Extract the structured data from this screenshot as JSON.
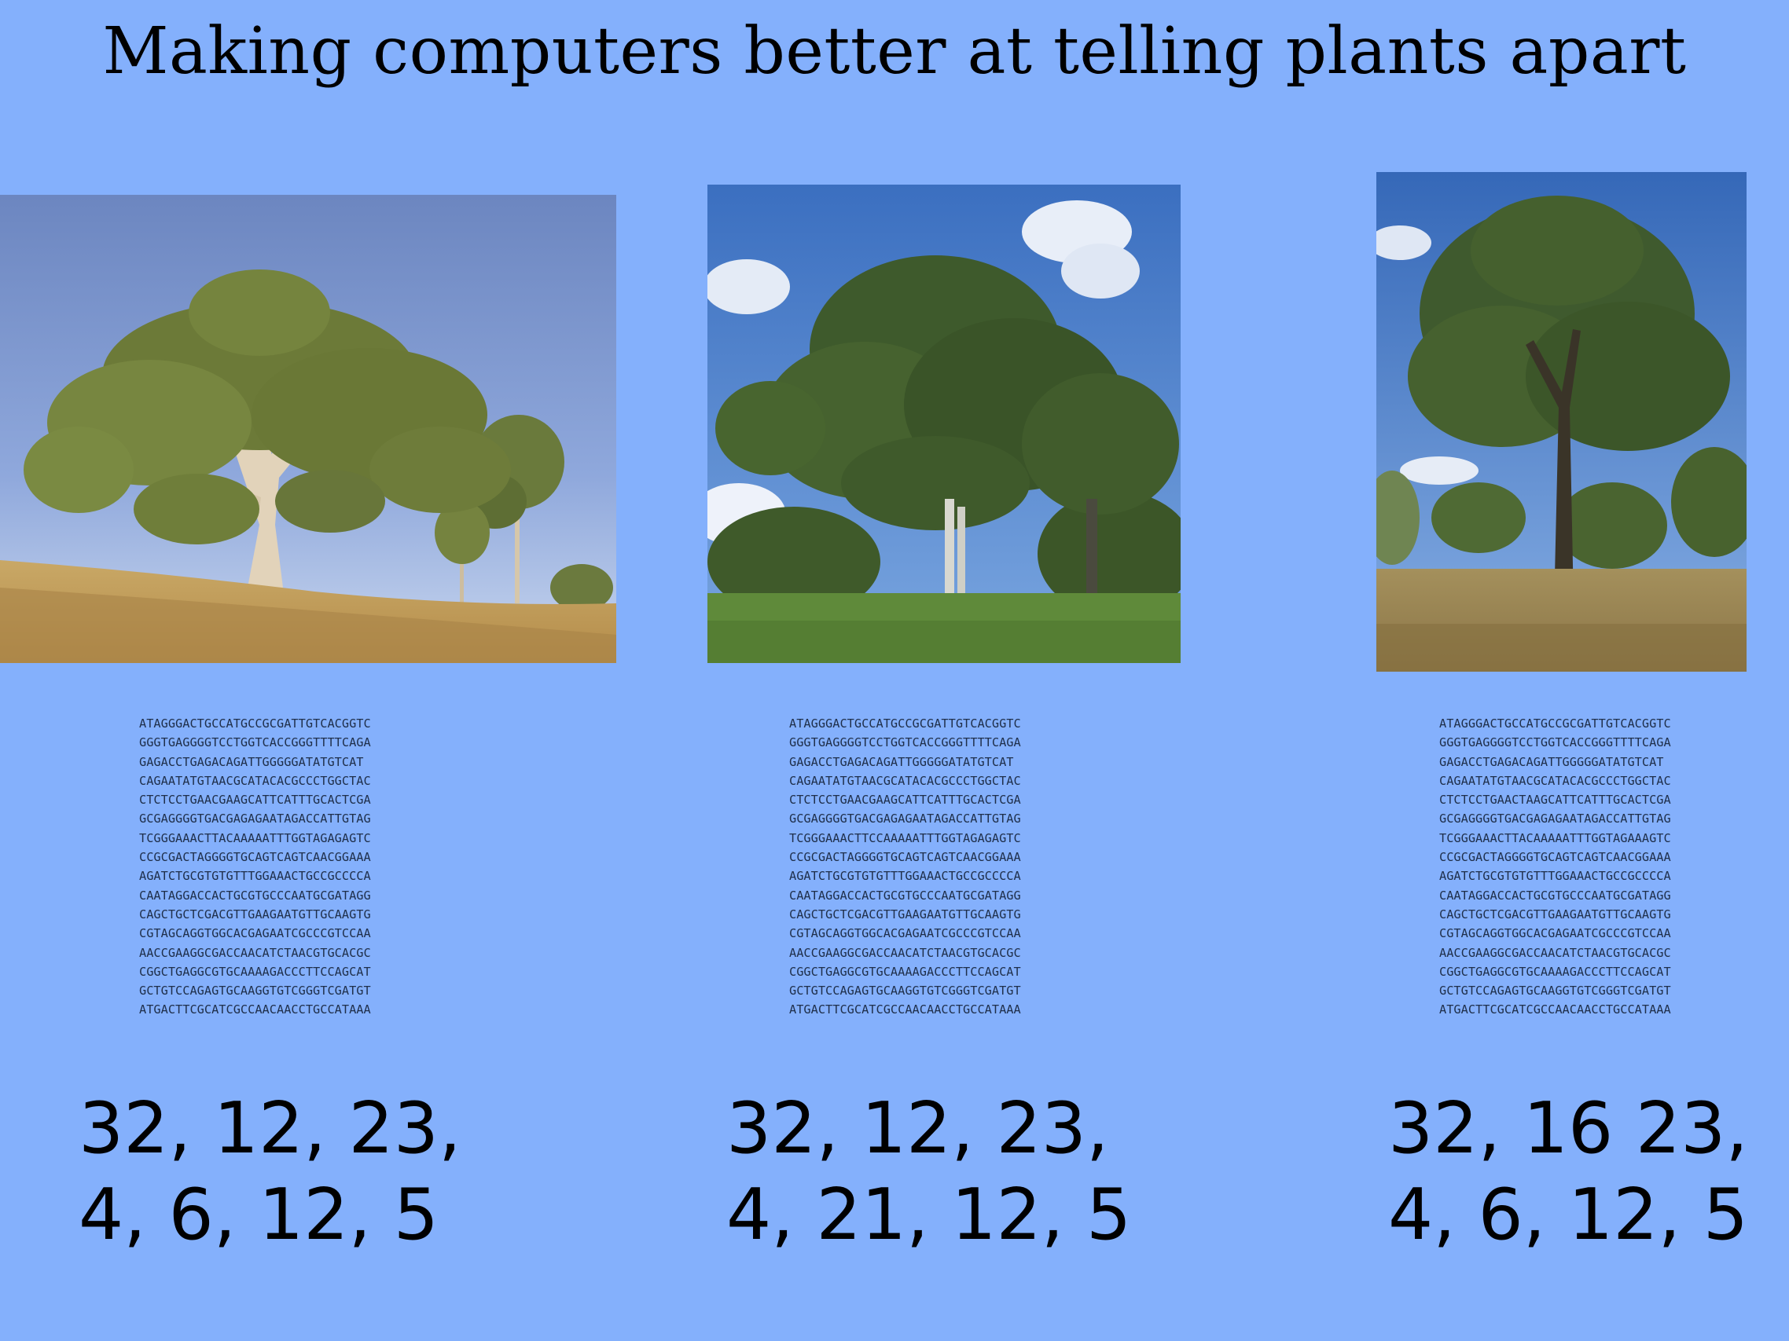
{
  "title": "Making computers better at telling plants apart",
  "panels": [
    {
      "sequence": [
        "ATAGGGACTGCCATGCCGCGATTGTCACGGTC",
        "GGGTGAGGGGTCCTGGTCACCGGGTTTTCAGA",
        "GAGACCTGAGACAGATTGGGGGATATGTCAT",
        "CAGAATATGTAACGCATACACGCCCTGGCTAC",
        "CTCTCCTGAACGAAGCATTCATTTGCACTCGA",
        "GCGAGGGGTGACGAGAGAATAGACCATTGTAG",
        "TCGGGAAACTTACAAAAATTTGGTAGAGAGTC",
        "CCGCGACTAGGGGTGCAGTCAGTCAACGGAAA",
        "AGATCTGCGTGTGTTTGGAAACTGCCGCCCCA",
        "CAATAGGACCACTGCGTGCCCAATGCGATAGG",
        "CAGCTGCTCGACGTTGAAGAATGTTGCAAGTG",
        "CGTAGCAGGTGGCACGAGAATCGCCCGTCCAA",
        "AACCGAAGGCGACCAACATCTAACGTGCACGC",
        "CGGCTGAGGCGTGCAAAAGACCCTTCCAGCAT",
        "GCTGTCCAGAGTGCAAGGTGTCGGGTCGATGT",
        "ATGACTTCGCATCGCCAACAACCTGCCATAAA"
      ],
      "numbers_line1": "32, 12, 23,",
      "numbers_line2": "4, 6, 12, 5"
    },
    {
      "sequence": [
        "ATAGGGACTGCCATGCCGCGATTGTCACGGTC",
        "GGGTGAGGGGTCCTGGTCACCGGGTTTTCAGA",
        "GAGACCTGAGACAGATTGGGGGATATGTCAT",
        "CAGAATATGTAACGCATACACGCCCTGGCTAC",
        "CTCTCCTGAACGAAGCATTCATTTGCACTCGA",
        "GCGAGGGGTGACGAGAGAATAGACCATTGTAG",
        "TCGGGAAACTTCCAAAAATTTGGTAGAGAGTC",
        "CCGCGACTAGGGGTGCAGTCAGTCAACGGAAA",
        "AGATCTGCGTGTGTTTGGAAACTGCCGCCCCA",
        "CAATAGGACCACTGCGTGCCCAATGCGATAGG",
        "CAGCTGCTCGACGTTGAAGAATGTTGCAAGTG",
        "CGTAGCAGGTGGCACGAGAATCGCCCGTCCAA",
        "AACCGAAGGCGACCAACATCTAACGTGCACGC",
        "CGGCTGAGGCGTGCAAAAGACCCTTCCAGCAT",
        "GCTGTCCAGAGTGCAAGGTGTCGGGTCGATGT",
        "ATGACTTCGCATCGCCAACAACCTGCCATAAA"
      ],
      "numbers_line1": "32, 12, 23,",
      "numbers_line2": "4, 21, 12, 5"
    },
    {
      "sequence": [
        "ATAGGGACTGCCATGCCGCGATTGTCACGGTC",
        "GGGTGAGGGGTCCTGGTCACCGGGTTTTCAGA",
        "GAGACCTGAGACAGATTGGGGGATATGTCAT",
        "CAGAATATGTAACGCATACACGCCCTGGCTAC",
        "CTCTCCTGAACTAAGCATTCATTTGCACTCGA",
        "GCGAGGGGTGACGAGAGAATAGACCATTGTAG",
        "TCGGGAAACTTACAAAAATTTGGTAGAAAGTC",
        "CCGCGACTAGGGGTGCAGTCAGTCAACGGAAA",
        "AGATCTGCGTGTGTTTGGAAACTGCCGCCCCA",
        "CAATAGGACCACTGCGTGCCCAATGCGATAGG",
        "CAGCTGCTCGACGTTGAAGAATGTTGCAAGTG",
        "CGTAGCAGGTGGCACGAGAATCGCCCGTCCAA",
        "AACCGAAGGCGACCAACATCTAACGTGCACGC",
        "CGGCTGAGGCGTGCAAAAGACCCTTCCAGCAT",
        "GCTGTCCAGAGTGCAAGGTGTCGGGTCGATGT",
        "ATGACTTCGCATCGCCAACAACCTGCCATAAA"
      ],
      "numbers_line1": "32, 16 23,",
      "numbers_line2": "4, 6, 12, 5"
    }
  ],
  "colors": {
    "background": "#84b0fc",
    "text": "#000000",
    "sequence_text": "#1f2f4a"
  }
}
